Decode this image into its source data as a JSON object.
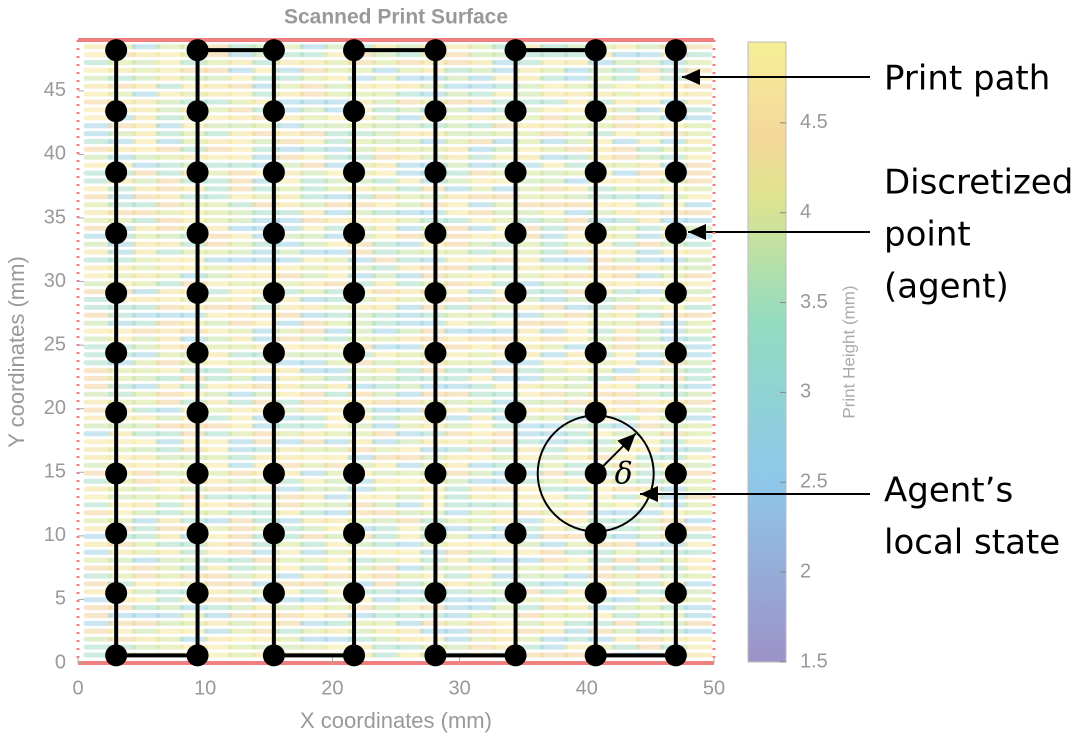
{
  "chart_data": {
    "type": "scatter",
    "title": "Scanned Print Surface",
    "x_label": "X coordinates (mm)",
    "y_label": "Y coordinates (mm)",
    "colorbar_label": "Print Height (mm)",
    "xlim": [
      0,
      50
    ],
    "xticks": [
      0,
      10,
      20,
      30,
      40,
      50
    ],
    "ylim": [
      0,
      49
    ],
    "yticks": [
      0,
      5,
      10,
      15,
      20,
      25,
      30,
      35,
      40,
      45
    ],
    "clim": [
      1.5,
      4.95
    ],
    "cticks": [
      1.5,
      2,
      2.5,
      3,
      3.5,
      4,
      4.5
    ],
    "series": [
      {
        "color": "#000000",
        "x": [
          3,
          3,
          3,
          3,
          3,
          3,
          3,
          3,
          3,
          3,
          3,
          9.4,
          9.4,
          9.4,
          9.4,
          9.4,
          9.4,
          9.4,
          9.4,
          9.4,
          9.4,
          9.4,
          15.4,
          15.4,
          15.4,
          15.4,
          15.4,
          15.4,
          15.4,
          15.4,
          15.4,
          15.4,
          15.4,
          21.7,
          21.7,
          21.7,
          21.7,
          21.7,
          21.7,
          21.7,
          21.7,
          21.7,
          21.7,
          21.7,
          28.1,
          28.1,
          28.1,
          28.1,
          28.1,
          28.1,
          28.1,
          28.1,
          28.1,
          28.1,
          28.1,
          34.4,
          34.4,
          34.4,
          34.4,
          34.4,
          34.4,
          34.4,
          34.4,
          34.4,
          34.4,
          34.4,
          40.7,
          40.7,
          40.7,
          40.7,
          40.7,
          40.7,
          40.7,
          40.7,
          40.7,
          40.7,
          40.7,
          47,
          47,
          47,
          47,
          47,
          47,
          47,
          47,
          47,
          47,
          47
        ],
        "y": [
          48.2,
          43.4,
          38.6,
          33.8,
          29.1,
          24.4,
          19.7,
          14.9,
          10.2,
          5.5,
          0.6,
          0.6,
          5.5,
          10.2,
          14.9,
          19.7,
          24.4,
          29.1,
          33.8,
          38.6,
          43.4,
          48.2,
          48.2,
          43.4,
          38.6,
          33.8,
          29.1,
          24.4,
          19.7,
          14.9,
          10.2,
          5.5,
          0.6,
          0.6,
          5.5,
          10.2,
          14.9,
          19.7,
          24.4,
          29.1,
          33.8,
          38.6,
          43.4,
          48.2,
          48.2,
          43.4,
          38.6,
          33.8,
          29.1,
          24.4,
          19.7,
          14.9,
          10.2,
          5.5,
          0.6,
          0.6,
          5.5,
          10.2,
          14.9,
          19.7,
          24.4,
          29.1,
          33.8,
          38.6,
          43.4,
          48.2,
          48.2,
          43.4,
          38.6,
          33.8,
          29.1,
          24.4,
          19.7,
          14.9,
          10.2,
          5.5,
          0.6,
          0.6,
          5.5,
          10.2,
          14.9,
          19.7,
          24.4,
          29.1,
          33.8,
          38.6,
          43.4,
          48.2
        ]
      }
    ],
    "delta_symbol": "δ",
    "annotations": [
      [
        "Print path"
      ],
      [
        "Discretized",
        "point",
        "(agent)"
      ],
      [
        "Agent’s",
        "local state"
      ]
    ]
  }
}
